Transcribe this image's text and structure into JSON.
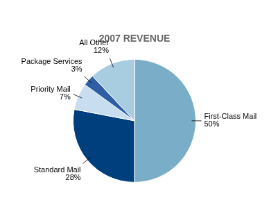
{
  "chart_data": {
    "type": "pie",
    "title": "2007 REVENUE",
    "categories": [
      "First-Class Mail",
      "Standard Mail",
      "Priority Mail",
      "Package Services",
      "All Other"
    ],
    "values": [
      50,
      28,
      7,
      3,
      12
    ],
    "value_labels": [
      "50%",
      "28%",
      "7%",
      "3%",
      "12%"
    ],
    "colors": [
      "#7aaec8",
      "#003f7d",
      "#c8ddef",
      "#2e5fa3",
      "#a8cce0"
    ],
    "data_labels": true
  }
}
